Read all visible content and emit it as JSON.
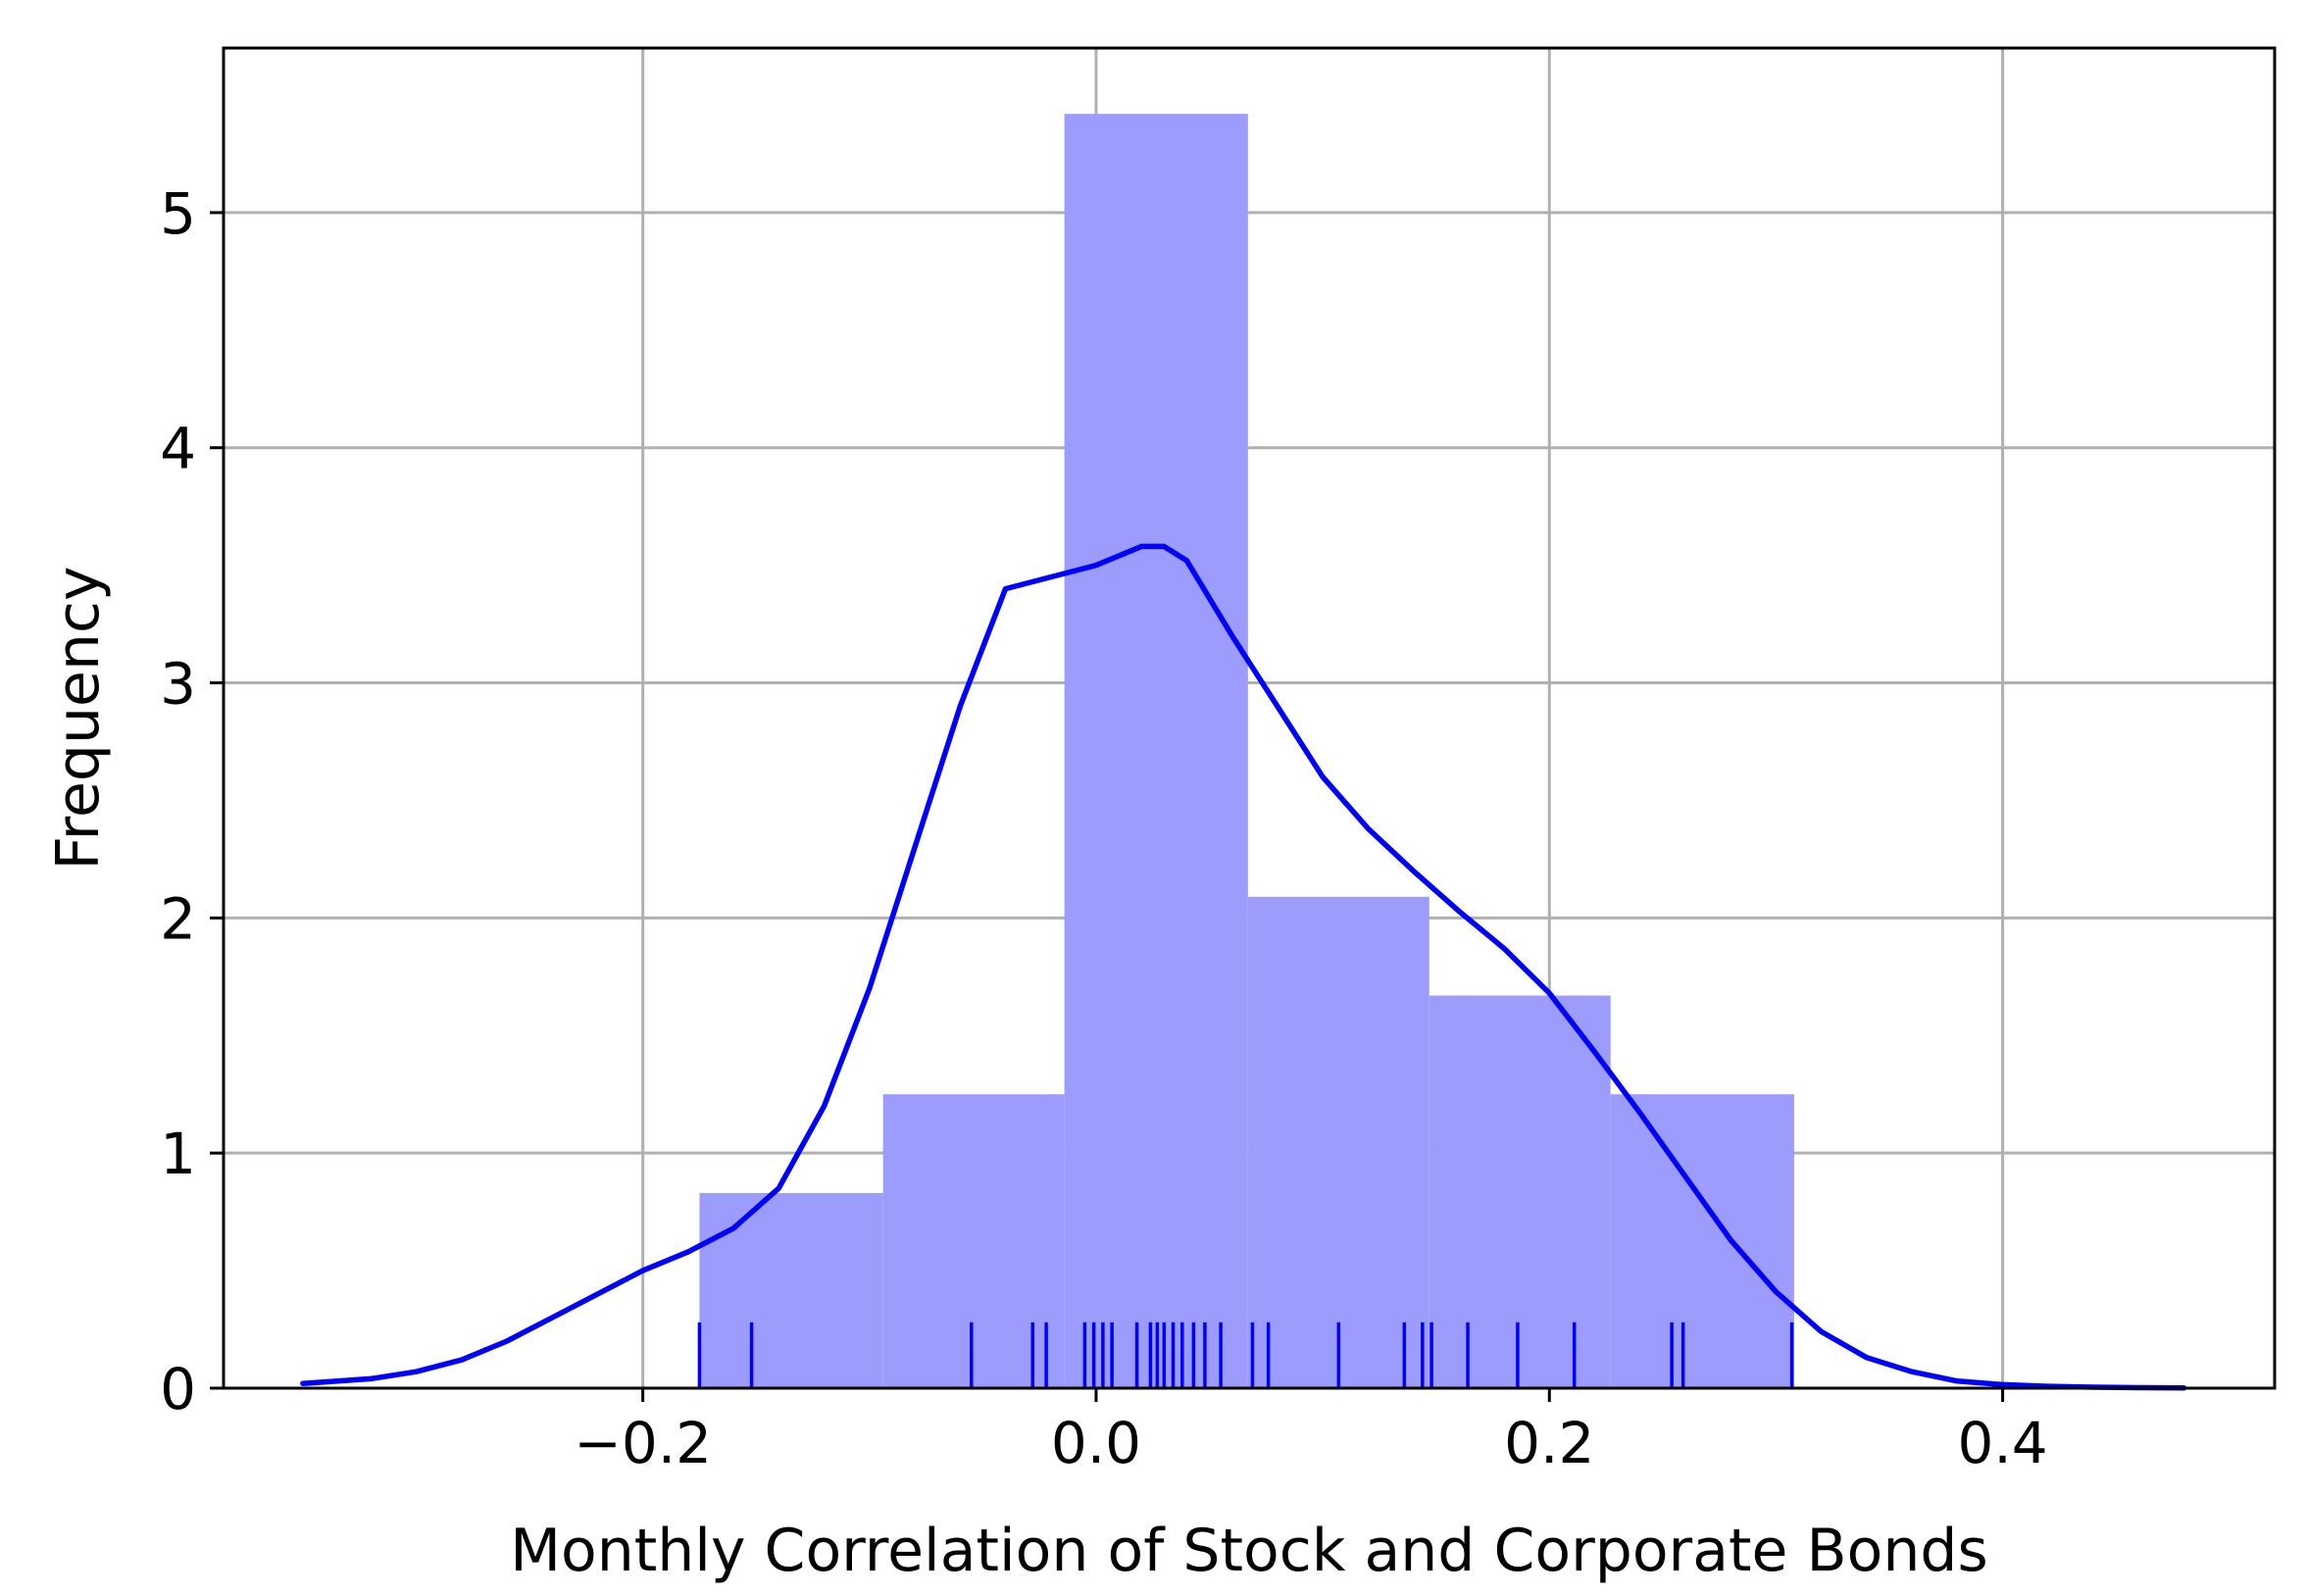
{
  "chart_data": {
    "type": "histogram",
    "xlabel": "Monthly Correlation of Stock and Corporate Bonds",
    "ylabel": "Frequency",
    "xlim": [
      -0.385,
      0.52
    ],
    "ylim": [
      0,
      5.7
    ],
    "grid": true,
    "x_ticks": [
      -0.2,
      0.0,
      0.2,
      0.4
    ],
    "x_tick_labels": [
      "−0.2",
      "0.0",
      "0.2",
      "0.4"
    ],
    "y_ticks": [
      0,
      1,
      2,
      3,
      4,
      5
    ],
    "y_tick_labels": [
      "0",
      "1",
      "2",
      "3",
      "4",
      "5"
    ],
    "histogram": {
      "bin_edges": [
        -0.175,
        -0.094,
        -0.014,
        0.067,
        0.147,
        0.227,
        0.308
      ],
      "heights": [
        0.83,
        1.25,
        5.42,
        2.09,
        1.67,
        1.25
      ],
      "color": "#9c9cfc"
    },
    "kde": {
      "color": "#0000ff",
      "x": [
        -0.35,
        -0.32,
        -0.3,
        -0.28,
        -0.26,
        -0.24,
        -0.22,
        -0.2,
        -0.18,
        -0.16,
        -0.14,
        -0.12,
        -0.1,
        -0.08,
        -0.06,
        -0.04,
        -0.02,
        0.0,
        0.02,
        0.03,
        0.04,
        0.06,
        0.08,
        0.1,
        0.12,
        0.14,
        0.16,
        0.18,
        0.2,
        0.22,
        0.24,
        0.26,
        0.28,
        0.3,
        0.32,
        0.34,
        0.36,
        0.38,
        0.4,
        0.42,
        0.44,
        0.46,
        0.48
      ],
      "y": [
        0.02,
        0.04,
        0.07,
        0.12,
        0.2,
        0.3,
        0.4,
        0.5,
        0.58,
        0.68,
        0.85,
        1.2,
        1.7,
        2.3,
        2.9,
        3.4,
        3.45,
        3.5,
        3.58,
        3.58,
        3.52,
        3.2,
        2.9,
        2.6,
        2.38,
        2.2,
        2.03,
        1.87,
        1.68,
        1.43,
        1.17,
        0.9,
        0.63,
        0.41,
        0.24,
        0.13,
        0.07,
        0.03,
        0.015,
        0.008,
        0.004,
        0.002,
        0.001
      ]
    },
    "rug": {
      "color": "#0000ff",
      "values": [
        -0.175,
        -0.152,
        -0.055,
        -0.028,
        -0.022,
        -0.005,
        -0.001,
        0.003,
        0.007,
        0.018,
        0.024,
        0.027,
        0.03,
        0.034,
        0.038,
        0.043,
        0.048,
        0.055,
        0.069,
        0.076,
        0.107,
        0.136,
        0.144,
        0.148,
        0.164,
        0.186,
        0.211,
        0.254,
        0.259,
        0.307
      ]
    }
  }
}
